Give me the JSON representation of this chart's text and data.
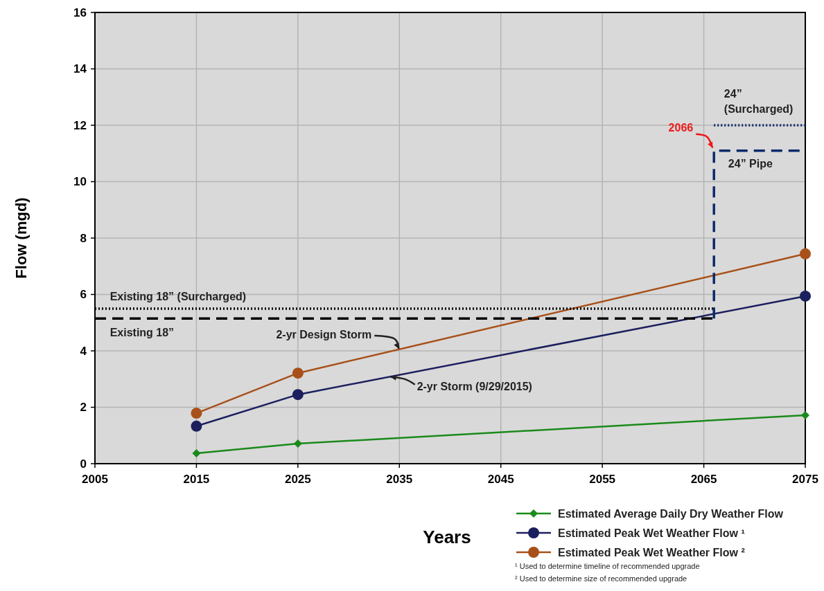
{
  "chart_data": {
    "type": "line",
    "xlabel": "Years",
    "ylabel": "Flow (mgd)",
    "xlim": [
      2005,
      2075
    ],
    "xticks": [
      2005,
      2015,
      2025,
      2035,
      2045,
      2055,
      2065,
      2075
    ],
    "ylim": [
      0,
      16
    ],
    "yticks": [
      0,
      2,
      4,
      6,
      8,
      10,
      12,
      14,
      16
    ],
    "grid": true,
    "legend": "bottom right",
    "series": [
      {
        "name": "Estimated Average Daily Dry Weather Flow",
        "color": "#1a8a1a",
        "x": [
          2015,
          2025,
          2075
        ],
        "values": [
          0.37,
          0.71,
          1.72
        ],
        "marker": "diamond",
        "line_style": "solid"
      },
      {
        "name": "Estimated Peak Wet Weather Flow ¹",
        "color": "#1c1f5e",
        "x": [
          2015,
          2025,
          2075
        ],
        "values": [
          1.33,
          2.45,
          5.94
        ],
        "marker": "circle",
        "line_style": "solid"
      },
      {
        "name": "Estimated Peak Wet Weather Flow ²",
        "color": "#a8501a",
        "x": [
          2015,
          2025,
          2075
        ],
        "values": [
          1.79,
          3.21,
          7.44
        ],
        "marker": "circle",
        "line_style": "solid"
      },
      {
        "color": "#000000",
        "x": [
          2005,
          2066
        ],
        "values": [
          5.5,
          5.5
        ],
        "marker": "none",
        "line_style": "dotted"
      },
      {
        "color": "#000000",
        "x": [
          2005,
          2066
        ],
        "values": [
          5.15,
          5.15
        ],
        "marker": "none",
        "line_style": "dashed"
      },
      {
        "color": "#0d2a6b",
        "x": [
          2066,
          2075
        ],
        "values": [
          12,
          12
        ],
        "marker": "none",
        "line_style": "dotted"
      },
      {
        "color": "#0d2a6b",
        "x": [
          2066,
          2066,
          2075
        ],
        "values": [
          5.15,
          11.1,
          11.1
        ],
        "marker": "none",
        "line_style": "dashed"
      }
    ],
    "annotations": [
      {
        "text": "Existing 18” (Surcharged)",
        "x": 2006,
        "y": 5.5
      },
      {
        "text": "Existing 18”",
        "x": 2006,
        "y": 5.15
      },
      {
        "text": "2-yr Design Storm",
        "x": 2035,
        "y": 4.0
      },
      {
        "text": "2-yr Storm (9/29/2015)",
        "x": 2034,
        "y": 3.1
      },
      {
        "text": "24” (Surcharged)",
        "x": 2067,
        "y": 12
      },
      {
        "text": "24” Pipe",
        "x": 2067,
        "y": 11.1
      },
      {
        "text": "2066",
        "x": 2066,
        "y": 11.1
      },
      "¹ Used to determine timeline of recommended upgrade",
      "² Used to determine size of recommended upgrade"
    ]
  }
}
